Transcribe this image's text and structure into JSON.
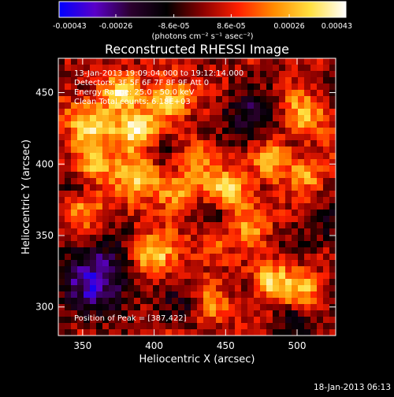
{
  "chart_data": {
    "type": "heatmap",
    "title": "Reconstructed RHESSI Image",
    "xlabel": "Heliocentric X (arcsec)",
    "ylabel": "Heliocentric Y (arcsec)",
    "xlim": [
      333,
      527
    ],
    "ylim": [
      280,
      474
    ],
    "x_ticks": [
      {
        "value": 350,
        "label": "350"
      },
      {
        "value": 400,
        "label": "400"
      },
      {
        "value": 450,
        "label": "450"
      },
      {
        "value": 500,
        "label": "500"
      }
    ],
    "y_ticks": [
      {
        "value": 300,
        "label": "300"
      },
      {
        "value": 350,
        "label": "350"
      },
      {
        "value": 400,
        "label": "400"
      },
      {
        "value": 450,
        "label": "450"
      }
    ],
    "colorbar": {
      "range": [
        -0.00043,
        0.00043
      ],
      "ticks": [
        {
          "value": -0.00043,
          "label": "-0.00043"
        },
        {
          "value": -0.00026,
          "label": "-0.00026"
        },
        {
          "value": -8.6e-05,
          "label": "-8.6e-05"
        },
        {
          "value": 8.6e-05,
          "label": "8.6e-05"
        },
        {
          "value": 0.00026,
          "label": "0.00026"
        },
        {
          "value": 0.00043,
          "label": "0.00043"
        }
      ],
      "units": "(photons cm⁻² s⁻¹ asec⁻²)",
      "colormap": [
        "#0000ff",
        "#5a00c8",
        "#2b002e",
        "#000000",
        "#8a0000",
        "#ff2000",
        "#ff8c00",
        "#ffe040",
        "#ffffff"
      ]
    },
    "annotations": [
      "13-Jan-2013 19:09:04.000 to 19:12:14.000",
      "Detectors: 3F 5F 6F 7F 8F 9F  Att 0",
      "Energy Range: 25.0 - 50.0 keV",
      "Clean     Total counts: 6.18E+03",
      "Position of Peak = [387,422]"
    ],
    "peak_position": [
      387,
      422
    ],
    "features": [
      {
        "x": 387,
        "y": 422,
        "amp": 1.0,
        "sigma": 11
      },
      {
        "x": 410,
        "y": 446,
        "amp": 0.85,
        "sigma": 10
      },
      {
        "x": 376,
        "y": 452,
        "amp": 0.7,
        "sigma": 9
      },
      {
        "x": 355,
        "y": 430,
        "amp": 0.75,
        "sigma": 12
      },
      {
        "x": 360,
        "y": 400,
        "amp": 0.6,
        "sigma": 10
      },
      {
        "x": 388,
        "y": 390,
        "amp": 0.65,
        "sigma": 11
      },
      {
        "x": 433,
        "y": 405,
        "amp": 0.55,
        "sigma": 10
      },
      {
        "x": 415,
        "y": 380,
        "amp": 0.7,
        "sigma": 10
      },
      {
        "x": 452,
        "y": 382,
        "amp": 0.8,
        "sigma": 10
      },
      {
        "x": 482,
        "y": 405,
        "amp": 0.75,
        "sigma": 10
      },
      {
        "x": 505,
        "y": 435,
        "amp": 0.7,
        "sigma": 10
      },
      {
        "x": 508,
        "y": 392,
        "amp": 0.55,
        "sigma": 9
      },
      {
        "x": 352,
        "y": 368,
        "amp": 0.6,
        "sigma": 10
      },
      {
        "x": 398,
        "y": 336,
        "amp": 0.8,
        "sigma": 11
      },
      {
        "x": 440,
        "y": 345,
        "amp": 0.45,
        "sigma": 10
      },
      {
        "x": 468,
        "y": 360,
        "amp": 0.5,
        "sigma": 10
      },
      {
        "x": 482,
        "y": 318,
        "amp": 0.75,
        "sigma": 10
      },
      {
        "x": 505,
        "y": 312,
        "amp": 0.6,
        "sigma": 9
      },
      {
        "x": 440,
        "y": 300,
        "amp": 0.5,
        "sigma": 9
      },
      {
        "x": 468,
        "y": 430,
        "amp": -0.55,
        "sigma": 14
      },
      {
        "x": 405,
        "y": 410,
        "amp": -0.5,
        "sigma": 8
      },
      {
        "x": 440,
        "y": 365,
        "amp": -0.45,
        "sigma": 9
      },
      {
        "x": 360,
        "y": 320,
        "amp": -0.9,
        "sigma": 18
      },
      {
        "x": 420,
        "y": 300,
        "amp": -0.35,
        "sigma": 10
      },
      {
        "x": 500,
        "y": 290,
        "amp": -0.4,
        "sigma": 10
      },
      {
        "x": 520,
        "y": 355,
        "amp": -0.4,
        "sigma": 10
      },
      {
        "x": 340,
        "y": 385,
        "amp": -0.3,
        "sigma": 8
      }
    ]
  },
  "footer": {
    "date": "18-Jan-2013 06:13"
  }
}
